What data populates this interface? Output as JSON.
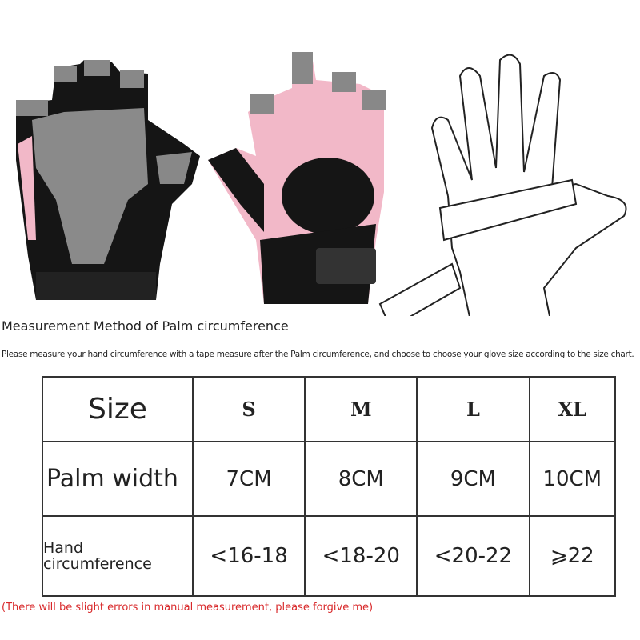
{
  "heading": "Measurement Method of Palm circumference",
  "description": "Please measure your hand circumference with a tape measure after the Palm circumference, and choose to choose your glove size according to the size chart.",
  "table": {
    "header_label": "Size",
    "sizes": [
      "S",
      "M",
      "L",
      "XL"
    ],
    "rows": [
      {
        "label": "Palm width",
        "values": [
          "7CM",
          "8CM",
          "9CM",
          "10CM"
        ]
      },
      {
        "label": "Hand circumference",
        "values": [
          "<16-18",
          "<18-20",
          "<20-22",
          "⩾22"
        ]
      }
    ]
  },
  "note": "(There will be slight errors in manual measurement, please forgive me)",
  "colors": {
    "glove_pink": "#f2b8c8",
    "glove_black": "#151515",
    "glove_grey": "#8a8a8a",
    "note_red": "#d8282a"
  }
}
